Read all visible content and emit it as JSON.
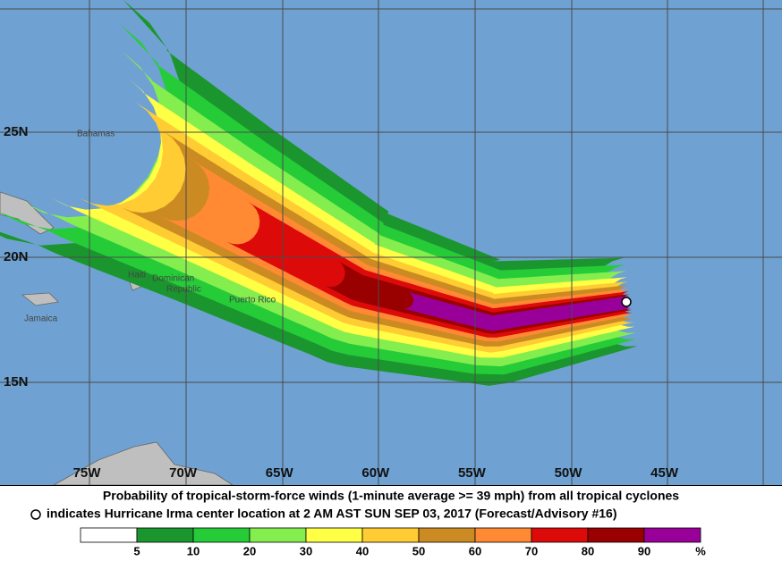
{
  "map": {
    "lon_labels": [
      "75W",
      "70W",
      "65W",
      "60W",
      "55W",
      "50W",
      "45W"
    ],
    "lat_labels": [
      "25N",
      "20N",
      "15N"
    ],
    "places": {
      "bahamas": "Bahamas",
      "haiti": "Haiti",
      "dominican": "Dominican",
      "republic": "Republic",
      "puerto_rico": "Puerto Rico",
      "jamaica": "Jamaica"
    }
  },
  "caption": {
    "line1": "Probability of tropical-storm-force winds (1-minute average >= 39 mph) from all tropical cyclones",
    "line2": "indicates Hurricane Irma center location at 2 AM AST SUN SEP 03, 2017 (Forecast/Advisory #16)"
  },
  "legend": {
    "labels": [
      5,
      10,
      20,
      30,
      40,
      50,
      60,
      70,
      80,
      90
    ],
    "unit": "%",
    "colors": [
      "#ffffff",
      "#1b962e",
      "#25cc38",
      "#84ee4e",
      "#ffff45",
      "#ffcc33",
      "#cc8a22",
      "#ff8a33",
      "#dd0a0a",
      "#990000",
      "#990099"
    ]
  }
}
